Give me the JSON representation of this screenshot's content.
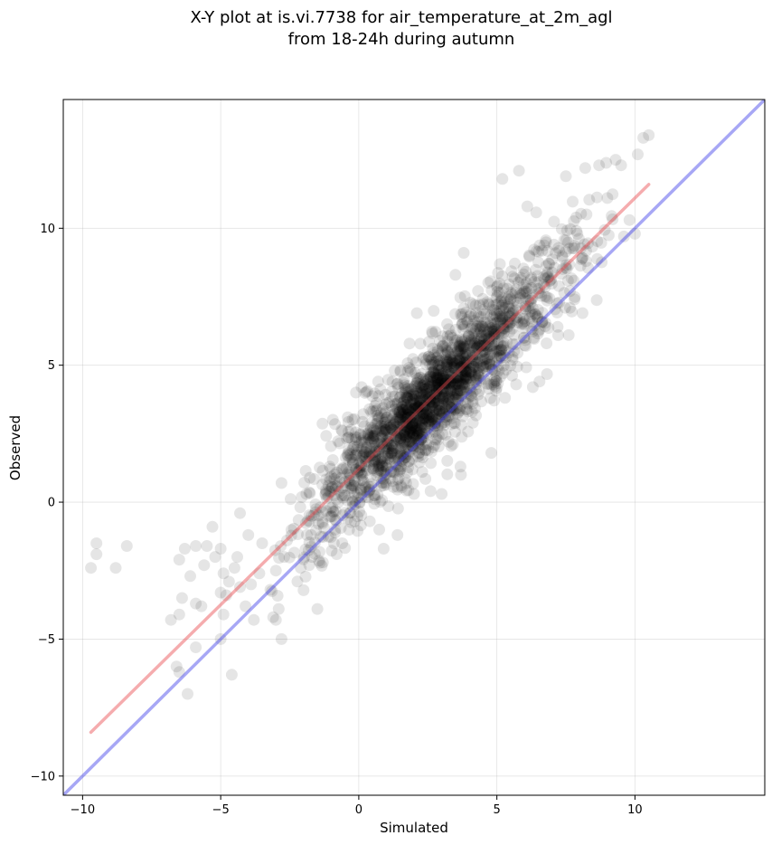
{
  "chart_data": {
    "type": "scatter",
    "title_line1": "X-Y plot at is.vi.7738 for air_temperature_at_2m_agl",
    "title_line2": "from 18-24h during autumn",
    "xlabel": "Simulated",
    "ylabel": "Observed",
    "xlim": [
      -10.7,
      14.7
    ],
    "ylim": [
      -10.7,
      14.7
    ],
    "xticks": [
      -10,
      -5,
      0,
      5,
      10
    ],
    "yticks": [
      -10,
      -5,
      0,
      5,
      10
    ],
    "xtick_labels": [
      "−10",
      "−5",
      "0",
      "5",
      "10"
    ],
    "ytick_labels": [
      "−10",
      "−5",
      "0",
      "5",
      "10"
    ],
    "grid": true,
    "point_color": "#000000",
    "fit_line": {
      "x1": -9.7,
      "y1": -8.4,
      "x2": 10.5,
      "y2": 11.6,
      "color": "#e8474c"
    },
    "identity_line": {
      "x1": -10.7,
      "y1": -10.7,
      "x2": 14.7,
      "y2": 14.7,
      "color": "#3b3be8"
    },
    "outliers": [
      [
        -9.7,
        -2.4
      ],
      [
        -9.5,
        -1.9
      ],
      [
        -9.5,
        -1.5
      ],
      [
        -8.8,
        -2.4
      ],
      [
        -8.4,
        -1.6
      ],
      [
        -6.8,
        -4.3
      ],
      [
        -6.5,
        -4.1
      ],
      [
        -6.4,
        -3.5
      ],
      [
        -6.5,
        -2.1
      ],
      [
        -6.3,
        -1.7
      ],
      [
        -6.1,
        -2.7
      ],
      [
        -5.9,
        -1.6
      ],
      [
        -5.9,
        -3.7
      ],
      [
        -5.7,
        -3.8
      ],
      [
        -5.6,
        -2.3
      ],
      [
        -5.5,
        -1.6
      ],
      [
        -5.3,
        -0.9
      ],
      [
        -5.2,
        -2.0
      ],
      [
        -5.0,
        -1.7
      ],
      [
        -5.0,
        -3.3
      ],
      [
        -4.9,
        -2.6
      ],
      [
        -4.8,
        -3.4
      ],
      [
        -4.7,
        -2.9
      ],
      [
        -4.5,
        -2.4
      ],
      [
        -4.4,
        -2.0
      ],
      [
        -4.3,
        -0.4
      ],
      [
        -4.3,
        -3.1
      ],
      [
        -4.1,
        -3.8
      ],
      [
        -4.0,
        -1.2
      ],
      [
        -3.9,
        -3.0
      ],
      [
        -3.8,
        -4.3
      ],
      [
        -3.6,
        -2.6
      ],
      [
        -3.5,
        -1.5
      ],
      [
        -3.2,
        -3.2
      ],
      [
        -3.0,
        -2.5
      ],
      [
        -2.9,
        -3.9
      ],
      [
        -2.7,
        -2.0
      ],
      [
        -3.0,
        -4.3
      ],
      [
        -6.6,
        -6.0
      ],
      [
        -6.5,
        -6.2
      ],
      [
        -6.2,
        -7.0
      ],
      [
        -5.9,
        -5.3
      ],
      [
        -4.6,
        -6.3
      ],
      [
        -5.0,
        -5.0
      ],
      [
        -4.9,
        -4.1
      ],
      [
        -2.8,
        -5.0
      ],
      [
        -3.1,
        -4.2
      ],
      [
        -2.6,
        -1.4
      ],
      [
        -2.8,
        0.7
      ],
      [
        -1.5,
        -3.9
      ],
      [
        -2.1,
        -2.4
      ],
      [
        -1.3,
        -2.2
      ],
      [
        -0.9,
        -1.5
      ],
      [
        -0.1,
        4.0
      ],
      [
        0.1,
        4.2
      ],
      [
        0.5,
        2.7
      ],
      [
        1.5,
        1.2
      ],
      [
        2.0,
        0.3
      ],
      [
        2.6,
        0.4
      ],
      [
        3.0,
        0.3
      ],
      [
        3.7,
        1.0
      ],
      [
        4.8,
        1.8
      ],
      [
        5.2,
        11.8
      ],
      [
        5.8,
        12.1
      ],
      [
        6.1,
        10.8
      ],
      [
        7.5,
        11.9
      ],
      [
        8.2,
        12.2
      ],
      [
        8.7,
        12.3
      ],
      [
        9.3,
        12.5
      ],
      [
        10.1,
        12.7
      ],
      [
        10.3,
        13.3
      ],
      [
        10.5,
        13.4
      ],
      [
        9.5,
        12.3
      ],
      [
        9.8,
        10.3
      ],
      [
        9.6,
        9.7
      ],
      [
        10.0,
        9.8
      ],
      [
        7.6,
        6.1
      ],
      [
        8.1,
        6.9
      ],
      [
        6.3,
        4.2
      ],
      [
        6.8,
        5.8
      ],
      [
        7.2,
        6.4
      ],
      [
        5.7,
        4.3
      ],
      [
        3.5,
        8.3
      ],
      [
        3.8,
        9.1
      ],
      [
        1.3,
        4.8
      ],
      [
        0.7,
        4.4
      ],
      [
        -0.2,
        2.0
      ],
      [
        2.1,
        6.9
      ],
      [
        4.1,
        3.3
      ],
      [
        5.0,
        6.9
      ],
      [
        5.4,
        6.4
      ],
      [
        0.9,
        -1.7
      ],
      [
        1.4,
        -1.2
      ],
      [
        -1.1,
        0.6
      ],
      [
        -0.6,
        -1.5
      ],
      [
        -1.9,
        0.3
      ],
      [
        0.4,
        -0.7
      ],
      [
        -0.4,
        3.1
      ]
    ],
    "cluster": {
      "count": 1500,
      "x_center": 2.8,
      "x_spread": 2.6,
      "x_min": -3.2,
      "x_max": 9.2,
      "slope": 0.99,
      "intercept": 1.2,
      "residual_sd": 1.0,
      "seed": 7738
    }
  }
}
